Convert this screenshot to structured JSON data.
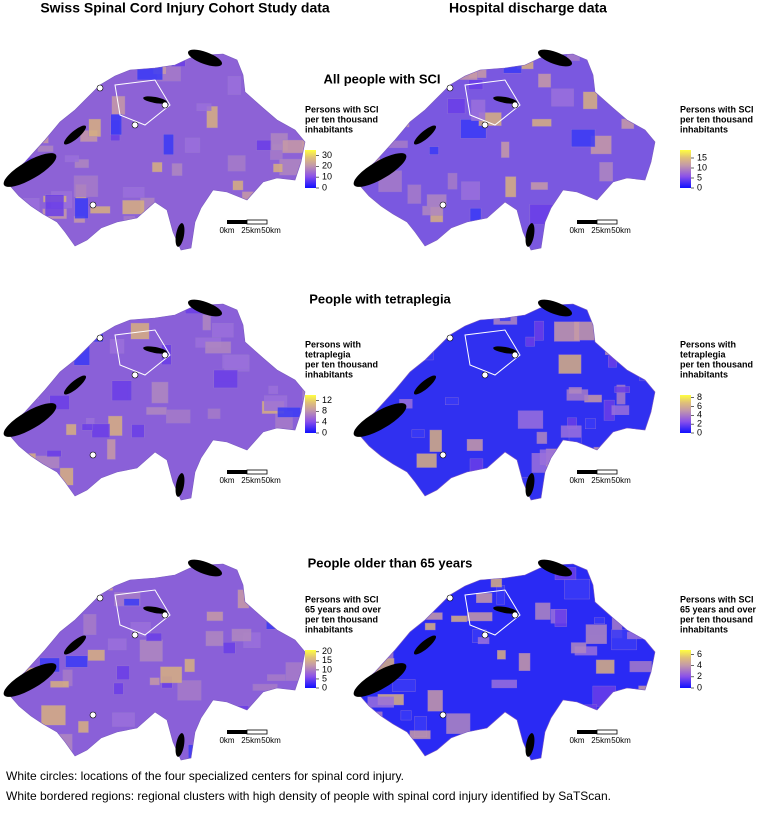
{
  "columns": [
    "Swiss Spinal Cord Injury Cohort Study data",
    "Hospital discharge data"
  ],
  "rows": [
    {
      "title": "All people with SCI",
      "panels": [
        {
          "legend": {
            "title": [
              "Persons with SCI",
              "per ten thousand",
              "inhabitants"
            ],
            "lim": [
              0,
              35
            ],
            "ticks": [
              0,
              10,
              20,
              30
            ]
          }
        },
        {
          "legend": {
            "title": [
              "Persons with SCI",
              "per ten thousand",
              "inhabitants"
            ],
            "lim": [
              0,
              19
            ],
            "ticks": [
              0,
              5,
              10,
              15
            ]
          }
        }
      ]
    },
    {
      "title": "People with tetraplegia",
      "panels": [
        {
          "legend": {
            "title": [
              "Persons with",
              "tetraplegia",
              "per ten thousand",
              "inhabitants"
            ],
            "lim": [
              0,
              14
            ],
            "ticks": [
              0,
              4,
              8,
              12
            ]
          }
        },
        {
          "legend": {
            "title": [
              "Persons with",
              "tetraplegia",
              "per ten thousand",
              "inhabitants"
            ],
            "lim": [
              0,
              8.6
            ],
            "ticks": [
              0,
              2,
              4,
              6,
              8
            ]
          }
        }
      ]
    },
    {
      "title": "People older than 65 years",
      "panels": [
        {
          "legend": {
            "title": [
              "Persons with SCI",
              "65 years and over",
              "per ten thousand",
              "inhabitants"
            ],
            "lim": [
              0,
              21
            ],
            "ticks": [
              0,
              5,
              10,
              15,
              20
            ]
          }
        },
        {
          "legend": {
            "title": [
              "Persons with SCI",
              "65 years and over",
              "per ten thousand",
              "inhabitants"
            ],
            "lim": [
              0,
              6.8
            ],
            "ticks": [
              0,
              2,
              4,
              6
            ]
          }
        }
      ]
    }
  ],
  "scale_bar": [
    "0km",
    "25km",
    "50km"
  ],
  "footnotes": [
    "White circles: locations of the four specialized centers for spinal cord injury.",
    "White bordered regions: regional clusters with high density of people with spinal cord injury identified by SaTScan."
  ]
}
